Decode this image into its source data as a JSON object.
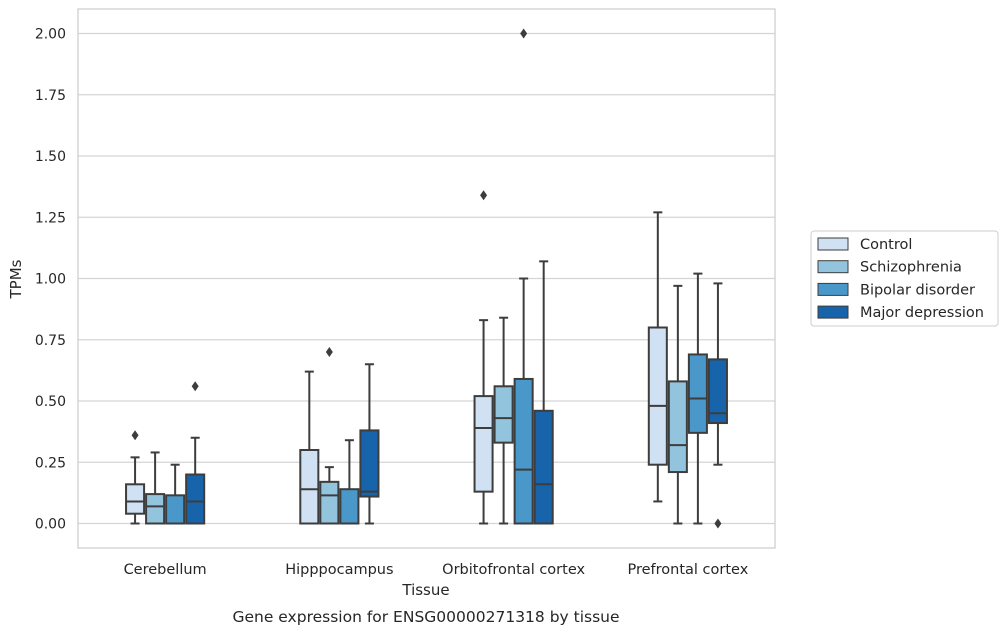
{
  "chart_data": {
    "type": "box",
    "xlabel": "Tissue",
    "ylabel": "TPMs",
    "caption": "Gene expression for ENSG00000271318 by tissue",
    "ylim": [
      -0.1,
      2.1
    ],
    "yticks": [
      0.0,
      0.25,
      0.5,
      0.75,
      1.0,
      1.25,
      1.5,
      1.75,
      2.0
    ],
    "ytick_labels": [
      "0.00",
      "0.25",
      "0.50",
      "0.75",
      "1.00",
      "1.25",
      "1.50",
      "1.75",
      "2.00"
    ],
    "grid": "horizontal",
    "legend_position": "right",
    "categories": [
      "Cerebellum",
      "Hipppocampus",
      "Orbitofrontal cortex",
      "Prefrontal cortex"
    ],
    "series": [
      {
        "name": "Control",
        "color": "#cfe1f2",
        "boxes": [
          {
            "min": 0.0,
            "q1": 0.04,
            "median": 0.09,
            "q3": 0.16,
            "max": 0.27,
            "outliers": [
              0.36
            ]
          },
          {
            "min": 0.0,
            "q1": 0.0,
            "median": 0.14,
            "q3": 0.3,
            "max": 0.62,
            "outliers": []
          },
          {
            "min": 0.0,
            "q1": 0.13,
            "median": 0.39,
            "q3": 0.52,
            "max": 0.83,
            "outliers": [
              1.34
            ]
          },
          {
            "min": 0.09,
            "q1": 0.24,
            "median": 0.48,
            "q3": 0.8,
            "max": 1.27,
            "outliers": []
          }
        ]
      },
      {
        "name": "Schizophrenia",
        "color": "#93c4de",
        "boxes": [
          {
            "min": 0.0,
            "q1": 0.0,
            "median": 0.07,
            "q3": 0.12,
            "max": 0.29,
            "outliers": []
          },
          {
            "min": 0.0,
            "q1": 0.0,
            "median": 0.115,
            "q3": 0.17,
            "max": 0.23,
            "outliers": [
              0.7
            ]
          },
          {
            "min": 0.0,
            "q1": 0.33,
            "median": 0.43,
            "q3": 0.56,
            "max": 0.84,
            "outliers": []
          },
          {
            "min": 0.0,
            "q1": 0.21,
            "median": 0.32,
            "q3": 0.58,
            "max": 0.97,
            "outliers": []
          }
        ]
      },
      {
        "name": "Bipolar disorder",
        "color": "#4a98c9",
        "boxes": [
          {
            "min": 0.0,
            "q1": 0.0,
            "median": 0.0,
            "q3": 0.115,
            "max": 0.24,
            "outliers": []
          },
          {
            "min": 0.0,
            "q1": 0.0,
            "median": 0.0,
            "q3": 0.14,
            "max": 0.34,
            "outliers": []
          },
          {
            "min": 0.0,
            "q1": 0.0,
            "median": 0.22,
            "q3": 0.59,
            "max": 1.0,
            "outliers": [
              2.0
            ]
          },
          {
            "min": 0.0,
            "q1": 0.37,
            "median": 0.51,
            "q3": 0.69,
            "max": 1.02,
            "outliers": []
          }
        ]
      },
      {
        "name": "Major depression",
        "color": "#1764ab",
        "boxes": [
          {
            "min": 0.0,
            "q1": 0.0,
            "median": 0.09,
            "q3": 0.2,
            "max": 0.35,
            "outliers": [
              0.56
            ]
          },
          {
            "min": 0.0,
            "q1": 0.11,
            "median": 0.13,
            "q3": 0.38,
            "max": 0.65,
            "outliers": []
          },
          {
            "min": 0.0,
            "q1": 0.0,
            "median": 0.16,
            "q3": 0.46,
            "max": 1.07,
            "outliers": []
          },
          {
            "min": 0.24,
            "q1": 0.41,
            "median": 0.45,
            "q3": 0.67,
            "max": 0.98,
            "outliers": [
              0.0
            ]
          }
        ]
      }
    ]
  }
}
